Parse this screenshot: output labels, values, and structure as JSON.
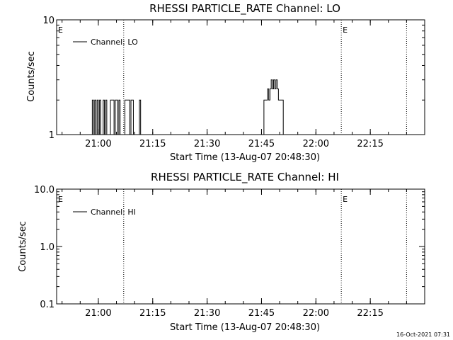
{
  "chart_data": [
    {
      "type": "line",
      "title": "RHESSI PARTICLE_RATE Channel: LO",
      "xlabel": "Start Time (13-Aug-07 20:48:30)",
      "ylabel": "Counts/sec",
      "y_scale": "log",
      "ylim": [
        1,
        10
      ],
      "xlim": [
        "20:48:30",
        "22:30:00"
      ],
      "y_ticks": [
        "1",
        "10"
      ],
      "x_ticks": [
        "21:00",
        "21:15",
        "21:30",
        "21:45",
        "22:00",
        "22:15"
      ],
      "legend": {
        "position": "top-left",
        "entries": [
          "Channel: LO"
        ]
      },
      "markers": [
        {
          "label": "E",
          "x": "20:48:30"
        },
        {
          "label": "",
          "x": "21:07:00"
        },
        {
          "label": "E",
          "x": "22:07:00"
        },
        {
          "label": "",
          "x": "22:25:00"
        }
      ],
      "series": [
        {
          "name": "Channel: LO",
          "points": [
            [
              "20:58:00",
              1
            ],
            [
              "20:58:20",
              2
            ],
            [
              "20:58:40",
              1
            ],
            [
              "20:59:00",
              2
            ],
            [
              "20:59:20",
              1
            ],
            [
              "20:59:40",
              2
            ],
            [
              "21:00:00",
              1
            ],
            [
              "21:00:20",
              2
            ],
            [
              "21:00:40",
              1
            ],
            [
              "21:01:00",
              1
            ],
            [
              "21:01:20",
              2
            ],
            [
              "21:01:40",
              1
            ],
            [
              "21:02:00",
              2
            ],
            [
              "21:02:20",
              1
            ],
            [
              "21:03:00",
              1
            ],
            [
              "21:03:20",
              2
            ],
            [
              "21:04:00",
              2
            ],
            [
              "21:04:20",
              1
            ],
            [
              "21:04:40",
              2
            ],
            [
              "21:05:20",
              1
            ],
            [
              "21:05:40",
              2
            ],
            [
              "21:06:00",
              1
            ],
            [
              "21:07:00",
              1
            ],
            [
              "21:07:20",
              2
            ],
            [
              "21:08:20",
              2
            ],
            [
              "21:08:40",
              1
            ],
            [
              "21:09:00",
              2
            ],
            [
              "21:09:40",
              1
            ],
            [
              "21:11:00",
              1
            ],
            [
              "21:11:20",
              2
            ],
            [
              "21:11:40",
              1
            ],
            [
              "21:45:00",
              1
            ],
            [
              "21:45:40",
              2
            ],
            [
              "21:46:20",
              2
            ],
            [
              "21:46:40",
              2.5
            ],
            [
              "21:47:00",
              2
            ],
            [
              "21:47:20",
              2.5
            ],
            [
              "21:47:40",
              3
            ],
            [
              "21:48:00",
              2.5
            ],
            [
              "21:48:20",
              3
            ],
            [
              "21:48:40",
              2.5
            ],
            [
              "21:49:00",
              3
            ],
            [
              "21:49:20",
              2.5
            ],
            [
              "21:49:40",
              2
            ],
            [
              "21:50:20",
              2
            ],
            [
              "21:51:00",
              1
            ]
          ]
        }
      ]
    },
    {
      "type": "line",
      "title": "RHESSI PARTICLE_RATE Channel: HI",
      "xlabel": "Start Time (13-Aug-07 20:48:30)",
      "ylabel": "Counts/sec",
      "y_scale": "log",
      "ylim": [
        0.1,
        10
      ],
      "xlim": [
        "20:48:30",
        "22:30:00"
      ],
      "y_ticks": [
        "0.1",
        "1.0",
        "10.0"
      ],
      "x_ticks": [
        "21:00",
        "21:15",
        "21:30",
        "21:45",
        "22:00",
        "22:15"
      ],
      "legend": {
        "position": "top-left",
        "entries": [
          "Channel: HI"
        ]
      },
      "markers": [
        {
          "label": "E",
          "x": "20:48:30"
        },
        {
          "label": "",
          "x": "21:07:00"
        },
        {
          "label": "E",
          "x": "22:07:00"
        },
        {
          "label": "",
          "x": "22:25:00"
        }
      ],
      "series": [
        {
          "name": "Channel: HI",
          "points": []
        }
      ]
    }
  ],
  "timestamp": "16-Oct-2021 07:31"
}
